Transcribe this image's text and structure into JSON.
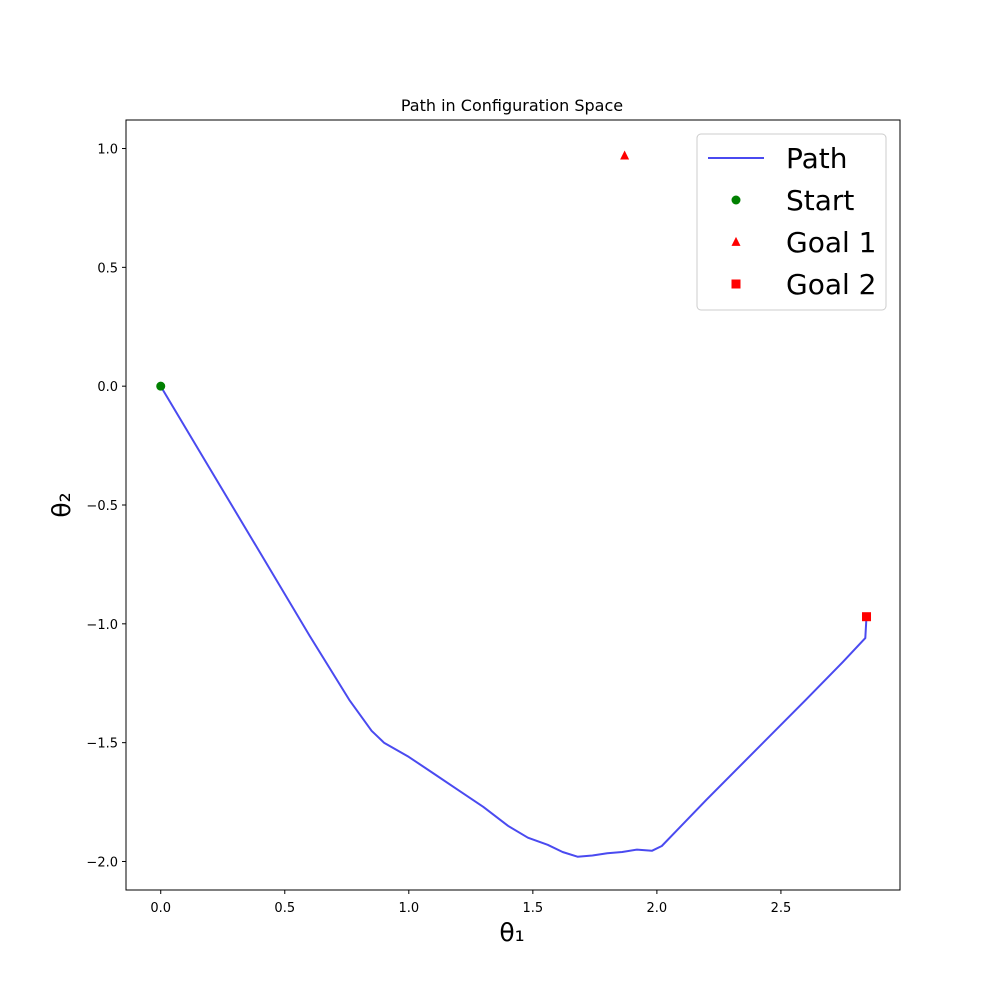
{
  "chart_data": {
    "type": "line",
    "title": "Path in Configuration Space",
    "xlabel": "θ₁",
    "ylabel": "θ₂",
    "xlim": [
      -0.14,
      2.98
    ],
    "ylim": [
      -2.12,
      1.12
    ],
    "xticks": [
      0.0,
      0.5,
      1.0,
      1.5,
      2.0,
      2.5
    ],
    "xtick_labels": [
      "0.0",
      "0.5",
      "1.0",
      "1.5",
      "2.0",
      "2.5"
    ],
    "yticks": [
      1.0,
      0.5,
      0.0,
      -0.5,
      -1.0,
      -1.5,
      -2.0
    ],
    "ytick_labels": [
      "1.0",
      "0.5",
      "0.0",
      "−0.5",
      "−1.0",
      "−1.5",
      "−2.0"
    ],
    "grid": false,
    "legend_position": "top-right",
    "series": [
      {
        "name": "Path",
        "kind": "line",
        "color": "#4a4af0",
        "points": [
          [
            0.0,
            0.0
          ],
          [
            0.2,
            -0.35
          ],
          [
            0.4,
            -0.7
          ],
          [
            0.6,
            -1.05
          ],
          [
            0.76,
            -1.32
          ],
          [
            0.85,
            -1.45
          ],
          [
            0.9,
            -1.5
          ],
          [
            1.0,
            -1.56
          ],
          [
            1.1,
            -1.63
          ],
          [
            1.2,
            -1.7
          ],
          [
            1.3,
            -1.77
          ],
          [
            1.4,
            -1.85
          ],
          [
            1.48,
            -1.9
          ],
          [
            1.56,
            -1.93
          ],
          [
            1.62,
            -1.96
          ],
          [
            1.68,
            -1.98
          ],
          [
            1.74,
            -1.975
          ],
          [
            1.8,
            -1.965
          ],
          [
            1.86,
            -1.96
          ],
          [
            1.92,
            -1.95
          ],
          [
            1.98,
            -1.955
          ],
          [
            2.02,
            -1.935
          ],
          [
            2.08,
            -1.87
          ],
          [
            2.2,
            -1.74
          ],
          [
            2.4,
            -1.53
          ],
          [
            2.6,
            -1.32
          ],
          [
            2.75,
            -1.16
          ],
          [
            2.84,
            -1.06
          ],
          [
            2.845,
            -0.97
          ]
        ]
      },
      {
        "name": "Start",
        "kind": "marker",
        "marker": "circle",
        "color": "#008000",
        "points": [
          [
            0.0,
            0.0
          ]
        ]
      },
      {
        "name": "Goal 1",
        "kind": "marker",
        "marker": "triangle",
        "color": "#ff0000",
        "points": [
          [
            1.87,
            0.97
          ]
        ]
      },
      {
        "name": "Goal 2",
        "kind": "marker",
        "marker": "square",
        "color": "#ff0000",
        "points": [
          [
            2.845,
            -0.97
          ]
        ]
      }
    ]
  }
}
